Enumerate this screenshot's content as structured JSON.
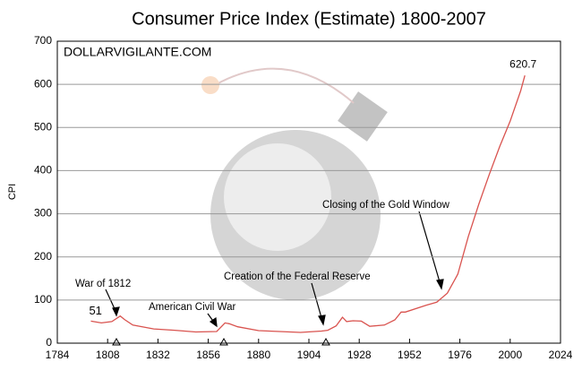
{
  "chart_data": {
    "type": "line",
    "title": "Consumer Price Index (Estimate) 1800-2007",
    "y_label": "CPI",
    "watermark": "DOLLARVIGILANTE.COM",
    "annotations": [
      "War of 1812",
      "American Civil War",
      "Creation of the Federal Reserve",
      "Closing of the Gold Window"
    ],
    "x": [
      1800,
      1805,
      1810,
      1814,
      1816,
      1820,
      1830,
      1840,
      1850,
      1860,
      1864,
      1866,
      1870,
      1880,
      1890,
      1900,
      1910,
      1913,
      1917,
      1920,
      1922,
      1925,
      1929,
      1933,
      1940,
      1945,
      1948,
      1950,
      1960,
      1965,
      1970,
      1975,
      1980,
      1985,
      1990,
      1995,
      2000,
      2005,
      2007
    ],
    "values": [
      51,
      47,
      50,
      63,
      55,
      42,
      33,
      30,
      26,
      27,
      47,
      45,
      38,
      29,
      27,
      25,
      28,
      30,
      40,
      60,
      50,
      52,
      51,
      39,
      42,
      54,
      72,
      72,
      88,
      95,
      116,
      160,
      247,
      322,
      391,
      456,
      515,
      585,
      620.7
    ],
    "color": "#d9534f",
    "xlim": [
      1784,
      2024
    ],
    "xticks": [
      1784,
      1808,
      1832,
      1856,
      1880,
      1904,
      1928,
      1952,
      1976,
      2000,
      2024
    ],
    "ylim": [
      0,
      700
    ],
    "yticks": [
      0,
      100,
      200,
      300,
      400,
      500,
      600,
      700
    ],
    "grid": true
  }
}
